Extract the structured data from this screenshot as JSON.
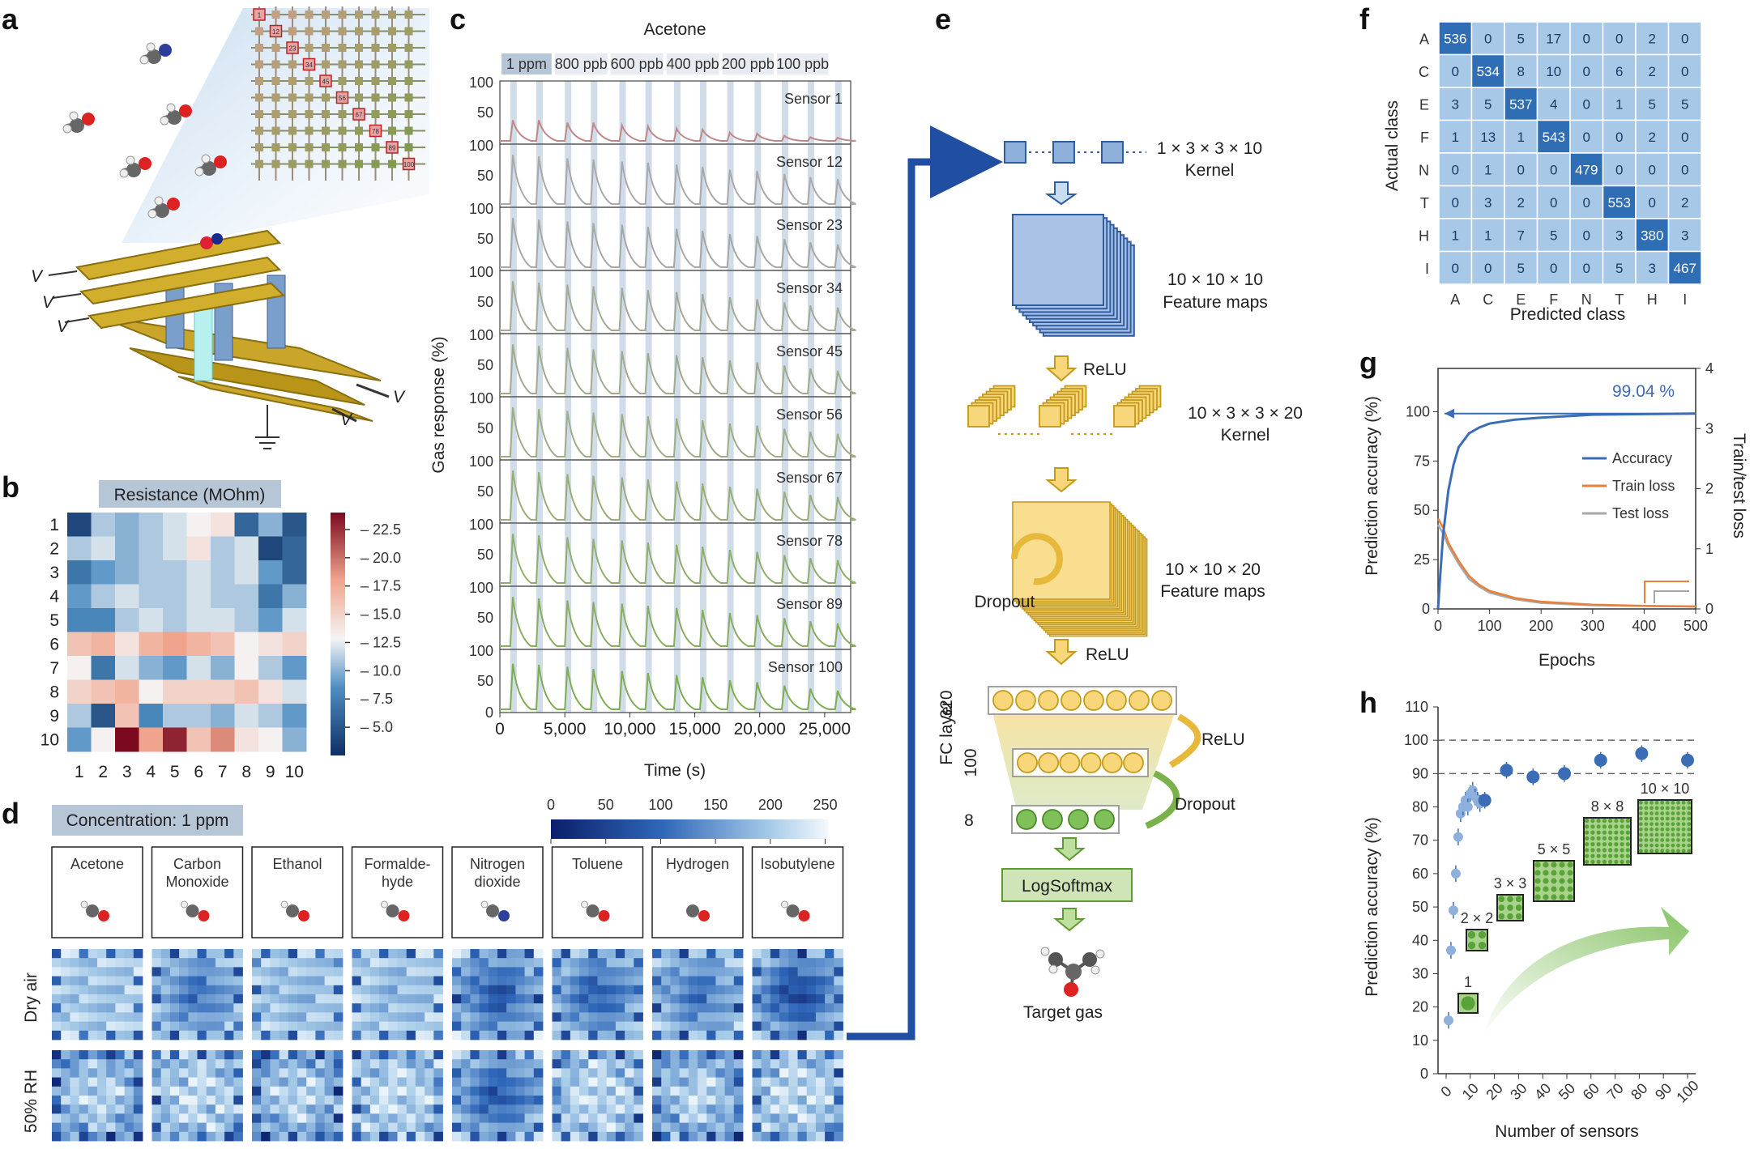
{
  "panel_letters": [
    "a",
    "b",
    "c",
    "d",
    "e",
    "f",
    "g",
    "h"
  ],
  "panel_a": {
    "voltage_labels": [
      "V",
      "V",
      "V",
      "V",
      "V"
    ],
    "grid_sensor_labels": [
      "1",
      "12",
      "23",
      "34",
      "45",
      "56",
      "67",
      "78",
      "89",
      "100"
    ]
  },
  "panel_b": {
    "title": "Resistance (MOhm)",
    "row_labels": [
      "1",
      "2",
      "3",
      "4",
      "5",
      "6",
      "7",
      "8",
      "9",
      "10"
    ],
    "col_labels": [
      "1",
      "2",
      "3",
      "4",
      "5",
      "6",
      "7",
      "8",
      "9",
      "10"
    ],
    "colorbar_ticks": [
      "22.5",
      "20.0",
      "17.5",
      "15.0",
      "12.5",
      "10.0",
      "7.5",
      "5.0"
    ],
    "colorbar_tick_values": [
      22.5,
      20.0,
      17.5,
      15.0,
      12.5,
      10.0,
      7.5,
      5.0
    ],
    "colorbar_range": [
      2.5,
      24
    ],
    "values": [
      [
        4,
        11,
        10,
        11,
        12,
        13,
        14,
        6,
        10,
        5
      ],
      [
        11,
        12,
        10,
        11,
        12,
        14,
        11,
        12,
        4,
        6
      ],
      [
        7,
        9,
        10,
        11,
        11,
        12,
        11,
        12,
        9,
        6
      ],
      [
        9,
        11,
        12,
        11,
        11,
        12,
        11,
        11,
        7,
        10
      ],
      [
        8,
        8,
        11,
        12,
        11,
        12,
        12,
        11,
        9,
        12
      ],
      [
        16,
        17,
        14,
        17,
        18,
        17,
        16,
        13,
        14,
        15
      ],
      [
        13,
        7,
        12,
        10,
        9,
        12,
        10,
        13,
        11,
        9
      ],
      [
        15,
        16,
        17,
        13,
        15,
        15,
        15,
        16,
        14,
        12
      ],
      [
        11,
        5,
        16,
        8,
        11,
        11,
        10,
        12,
        11,
        9
      ],
      [
        9,
        13,
        24,
        18,
        23,
        16,
        19,
        14,
        13,
        10
      ]
    ]
  },
  "panel_c": {
    "title": "Acetone",
    "conc_labels": [
      "1 ppm",
      "800 ppb",
      "600 ppb",
      "400 ppb",
      "200 ppb",
      "100 ppb"
    ],
    "sensor_labels": [
      "Sensor 1",
      "Sensor 12",
      "Sensor 23",
      "Sensor 34",
      "Sensor 45",
      "Sensor 56",
      "Sensor 67",
      "Sensor 78",
      "Sensor 89",
      "Sensor 100"
    ],
    "ylabel": "Gas response (%)",
    "xlabel": "Time (s)",
    "xtick_labels": [
      "0",
      "5,000",
      "10,000",
      "15,000",
      "20,000",
      "25,000"
    ],
    "ytick_labels": [
      "100",
      "50",
      "0"
    ]
  },
  "panel_d": {
    "concentration_label": "Concentration: 1 ppm",
    "colorbar_ticks": [
      "0",
      "50",
      "100",
      "150",
      "200",
      "250"
    ],
    "gases": [
      "Acetone",
      "Carbon\nMonoxide",
      "Ethanol",
      "Formalde-\nhyde",
      "Nitrogen\ndioxide",
      "Toluene",
      "Hydrogen",
      "Isobutylene"
    ],
    "row_labels": [
      "Dry air",
      "50% RH"
    ]
  },
  "panel_e": {
    "kernel1": [
      "1 × 3 × 3 × 10",
      "Kernel"
    ],
    "fmap1": [
      "10 × 10 × 10",
      "Feature maps"
    ],
    "relu1": "ReLU",
    "kernel2": [
      "10 × 3 × 3 × 20",
      "Kernel"
    ],
    "fmap2": [
      "10 × 10 × 20",
      "Feature maps"
    ],
    "dropout1": "Dropout",
    "relu2": "ReLU",
    "fc_label": "FC layer",
    "fc_sizes": [
      "320",
      "100",
      "8"
    ],
    "relu3": "ReLU",
    "dropout2": "Dropout",
    "softmax": "LogSoftmax",
    "target": "Target gas"
  },
  "panel_f": {
    "ylabel": "Actual class",
    "xlabel": "Predicted class",
    "classes": [
      "A",
      "C",
      "E",
      "F",
      "N",
      "T",
      "H",
      "I"
    ],
    "matrix": [
      [
        536,
        0,
        5,
        17,
        0,
        0,
        2,
        0
      ],
      [
        0,
        534,
        8,
        10,
        0,
        6,
        2,
        0
      ],
      [
        3,
        5,
        537,
        4,
        0,
        1,
        5,
        5
      ],
      [
        1,
        13,
        1,
        543,
        0,
        0,
        2,
        0
      ],
      [
        0,
        1,
        0,
        0,
        479,
        0,
        0,
        0
      ],
      [
        0,
        3,
        2,
        0,
        0,
        553,
        0,
        2
      ],
      [
        1,
        1,
        7,
        5,
        0,
        3,
        380,
        3
      ],
      [
        0,
        0,
        5,
        0,
        0,
        5,
        3,
        467
      ]
    ]
  },
  "panel_g": {
    "annotation": "99.04 %",
    "ylabel_left": "Prediction accuracy (%)",
    "ylabel_right": "Train/test loss",
    "xlabel": "Epochs",
    "xtick_labels": [
      "0",
      "100",
      "200",
      "300",
      "400",
      "500"
    ],
    "ytick_left": [
      "0",
      "25",
      "50",
      "75",
      "100"
    ],
    "ytick_right": [
      "0",
      "1",
      "2",
      "3",
      "4"
    ],
    "legend": [
      "Accuracy",
      "Train loss",
      "Test loss"
    ],
    "colors": {
      "accuracy": "#3a6db5",
      "train": "#e8803a",
      "test": "#a8a8a8"
    }
  },
  "panel_h": {
    "ylabel": "Prediction accuracy (%)",
    "xlabel": "Number of sensors",
    "xtick_labels": [
      "0",
      "10",
      "20",
      "30",
      "40",
      "50",
      "60",
      "70",
      "80",
      "90",
      "100"
    ],
    "ytick_labels": [
      "0",
      "10",
      "20",
      "30",
      "40",
      "50",
      "60",
      "70",
      "80",
      "90",
      "100",
      "110"
    ],
    "array_labels": [
      "1",
      "2 × 2",
      "3 × 3",
      "5 × 5",
      "8 × 8",
      "10 × 10"
    ]
  },
  "chart_data": [
    {
      "type": "heatmap",
      "title": "Resistance (MOhm)",
      "ref": "panel_b"
    },
    {
      "type": "line",
      "title": "Acetone",
      "xlabel": "Time (s)",
      "ylabel": "Gas response (%)",
      "xlim": [
        0,
        27000
      ],
      "ylim": [
        0,
        100
      ],
      "pulse_times": [
        800,
        2800,
        5000,
        7000,
        9200,
        11200,
        13400,
        15400,
        17500,
        19600,
        21700,
        23700,
        25800
      ],
      "series": [
        {
          "name": "Sensor 1",
          "peak": [
            40,
            40,
            35,
            35,
            30,
            28,
            24,
            22,
            16,
            14,
            10,
            7,
            6
          ]
        },
        {
          "name": "Sensor 12",
          "peak": [
            95,
            92,
            88,
            86,
            82,
            80,
            76,
            72,
            66,
            64,
            58,
            52,
            48
          ]
        },
        {
          "name": "Sensor 23",
          "peak": [
            95,
            92,
            88,
            85,
            82,
            78,
            74,
            70,
            64,
            60,
            54,
            48,
            44
          ]
        },
        {
          "name": "Sensor 34",
          "peak": [
            95,
            92,
            88,
            85,
            82,
            78,
            74,
            70,
            64,
            60,
            54,
            48,
            44
          ]
        },
        {
          "name": "Sensor 45",
          "peak": [
            95,
            92,
            88,
            85,
            82,
            78,
            74,
            70,
            64,
            60,
            54,
            48,
            44
          ]
        },
        {
          "name": "Sensor 56",
          "peak": [
            95,
            92,
            88,
            85,
            82,
            78,
            74,
            70,
            64,
            60,
            54,
            48,
            44
          ]
        },
        {
          "name": "Sensor 67",
          "peak": [
            95,
            92,
            88,
            85,
            82,
            78,
            74,
            70,
            64,
            60,
            54,
            48,
            44
          ]
        },
        {
          "name": "Sensor 78",
          "peak": [
            95,
            92,
            88,
            85,
            82,
            78,
            74,
            70,
            64,
            60,
            54,
            48,
            44
          ]
        },
        {
          "name": "Sensor 89",
          "peak": [
            95,
            92,
            88,
            85,
            82,
            78,
            74,
            70,
            64,
            60,
            54,
            48,
            44
          ]
        },
        {
          "name": "Sensor 100",
          "peak": [
            88,
            86,
            82,
            78,
            74,
            70,
            66,
            62,
            56,
            52,
            46,
            40,
            36
          ]
        }
      ]
    },
    {
      "type": "line",
      "xlabel": "Epochs",
      "ylabel": "Prediction accuracy (%)",
      "xlim": [
        0,
        500
      ],
      "ylim": [
        0,
        100
      ],
      "series": [
        {
          "name": "Accuracy",
          "x": [
            0,
            5,
            10,
            20,
            30,
            40,
            60,
            80,
            100,
            150,
            200,
            300,
            400,
            500
          ],
          "y": [
            0,
            20,
            38,
            60,
            73,
            82,
            89,
            92,
            94,
            96,
            97,
            98.5,
            98.8,
            99.04
          ]
        },
        {
          "name": "Train loss",
          "x": [
            0,
            10,
            20,
            40,
            60,
            80,
            100,
            150,
            200,
            300,
            400,
            500
          ],
          "y": [
            1.5,
            1.35,
            1.1,
            0.8,
            0.55,
            0.4,
            0.3,
            0.18,
            0.12,
            0.07,
            0.05,
            0.04
          ]
        },
        {
          "name": "Test loss",
          "x": [
            0,
            10,
            20,
            40,
            60,
            80,
            100,
            150,
            200,
            300,
            400,
            500
          ],
          "y": [
            1.4,
            1.25,
            1.05,
            0.75,
            0.5,
            0.37,
            0.27,
            0.16,
            0.1,
            0.06,
            0.05,
            0.04
          ]
        }
      ]
    },
    {
      "type": "scatter",
      "xlabel": "Number of sensors",
      "ylabel": "Prediction accuracy (%)",
      "xlim": [
        0,
        100
      ],
      "ylim": [
        0,
        110
      ],
      "x": [
        1,
        2,
        3,
        4,
        5,
        6,
        7,
        8,
        9,
        10,
        11,
        12,
        13,
        14,
        16,
        25,
        36,
        49,
        64,
        81,
        100
      ],
      "y": [
        16,
        37,
        49,
        60,
        71,
        78,
        80,
        82,
        80,
        84,
        85,
        83,
        82,
        81,
        82,
        91,
        89,
        90,
        94,
        96,
        94
      ]
    }
  ]
}
